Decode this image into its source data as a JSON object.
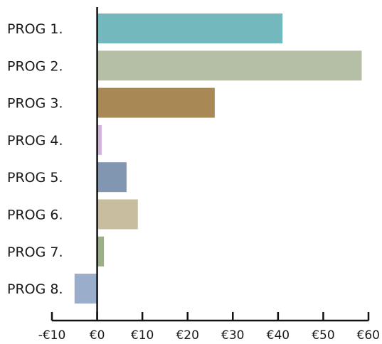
{
  "chart_data": {
    "type": "bar",
    "orientation": "horizontal",
    "categories": [
      "PROG 1.",
      "PROG 2.",
      "PROG 3.",
      "PROG 4.",
      "PROG 5.",
      "PROG 6.",
      "PROG 7.",
      "PROG 8."
    ],
    "values": [
      41,
      58.5,
      26,
      1,
      6.5,
      9,
      1.5,
      -5
    ],
    "colors": [
      "#72b8bc",
      "#b4bfa6",
      "#a88955",
      "#d2b3dc",
      "#8196b0",
      "#c8bd9e",
      "#9aaf85",
      "#9aaecc"
    ],
    "xlim": [
      -10,
      60
    ],
    "xticks": [
      -10,
      0,
      10,
      20,
      30,
      40,
      50,
      60
    ],
    "xtick_labels": [
      "-€10",
      "€0",
      "€10",
      "€20",
      "€30",
      "€40",
      "€50",
      "€60"
    ],
    "title": "",
    "xlabel": "",
    "ylabel": "",
    "grid": false,
    "legend": "none"
  }
}
